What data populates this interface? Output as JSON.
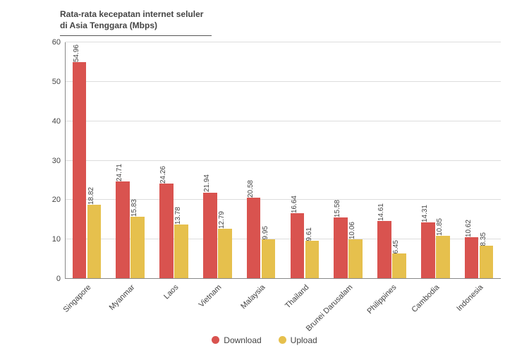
{
  "title": {
    "line1": "Rata-rata kecepatan internet seluler",
    "line2": "di Asia Tenggara (Mbps)"
  },
  "chart": {
    "type": "bar",
    "background_color": "#ffffff",
    "grid_color": "#dddddd",
    "axis_color": "#888888",
    "text_color": "#444444",
    "title_fontsize": 12,
    "tick_fontsize": 11,
    "value_fontsize": 10,
    "ylim": [
      0,
      60
    ],
    "ytick_step": 10,
    "yticks": [
      0,
      10,
      20,
      30,
      40,
      50,
      60
    ],
    "categories": [
      "Singapore",
      "Myanmar",
      "Laos",
      "Vietnam",
      "Malaysia",
      "Thailand",
      "Brunei Darusalam",
      "Philippines",
      "Cambodia",
      "Indonesia"
    ],
    "series": [
      {
        "name": "Download",
        "color": "#d9534f",
        "values": [
          54.96,
          24.71,
          24.26,
          21.94,
          20.58,
          16.64,
          15.58,
          14.61,
          14.31,
          10.62
        ]
      },
      {
        "name": "Upload",
        "color": "#e6c04d",
        "values": [
          18.82,
          15.83,
          13.78,
          12.79,
          9.95,
          9.61,
          10.06,
          6.45,
          10.85,
          8.35
        ]
      }
    ],
    "bar_width_pct": 32,
    "group_gap_pct": 4,
    "x_label_rotation": -45
  },
  "legend": {
    "items": [
      {
        "label": "Download",
        "color": "#d9534f"
      },
      {
        "label": "Upload",
        "color": "#e6c04d"
      }
    ]
  }
}
